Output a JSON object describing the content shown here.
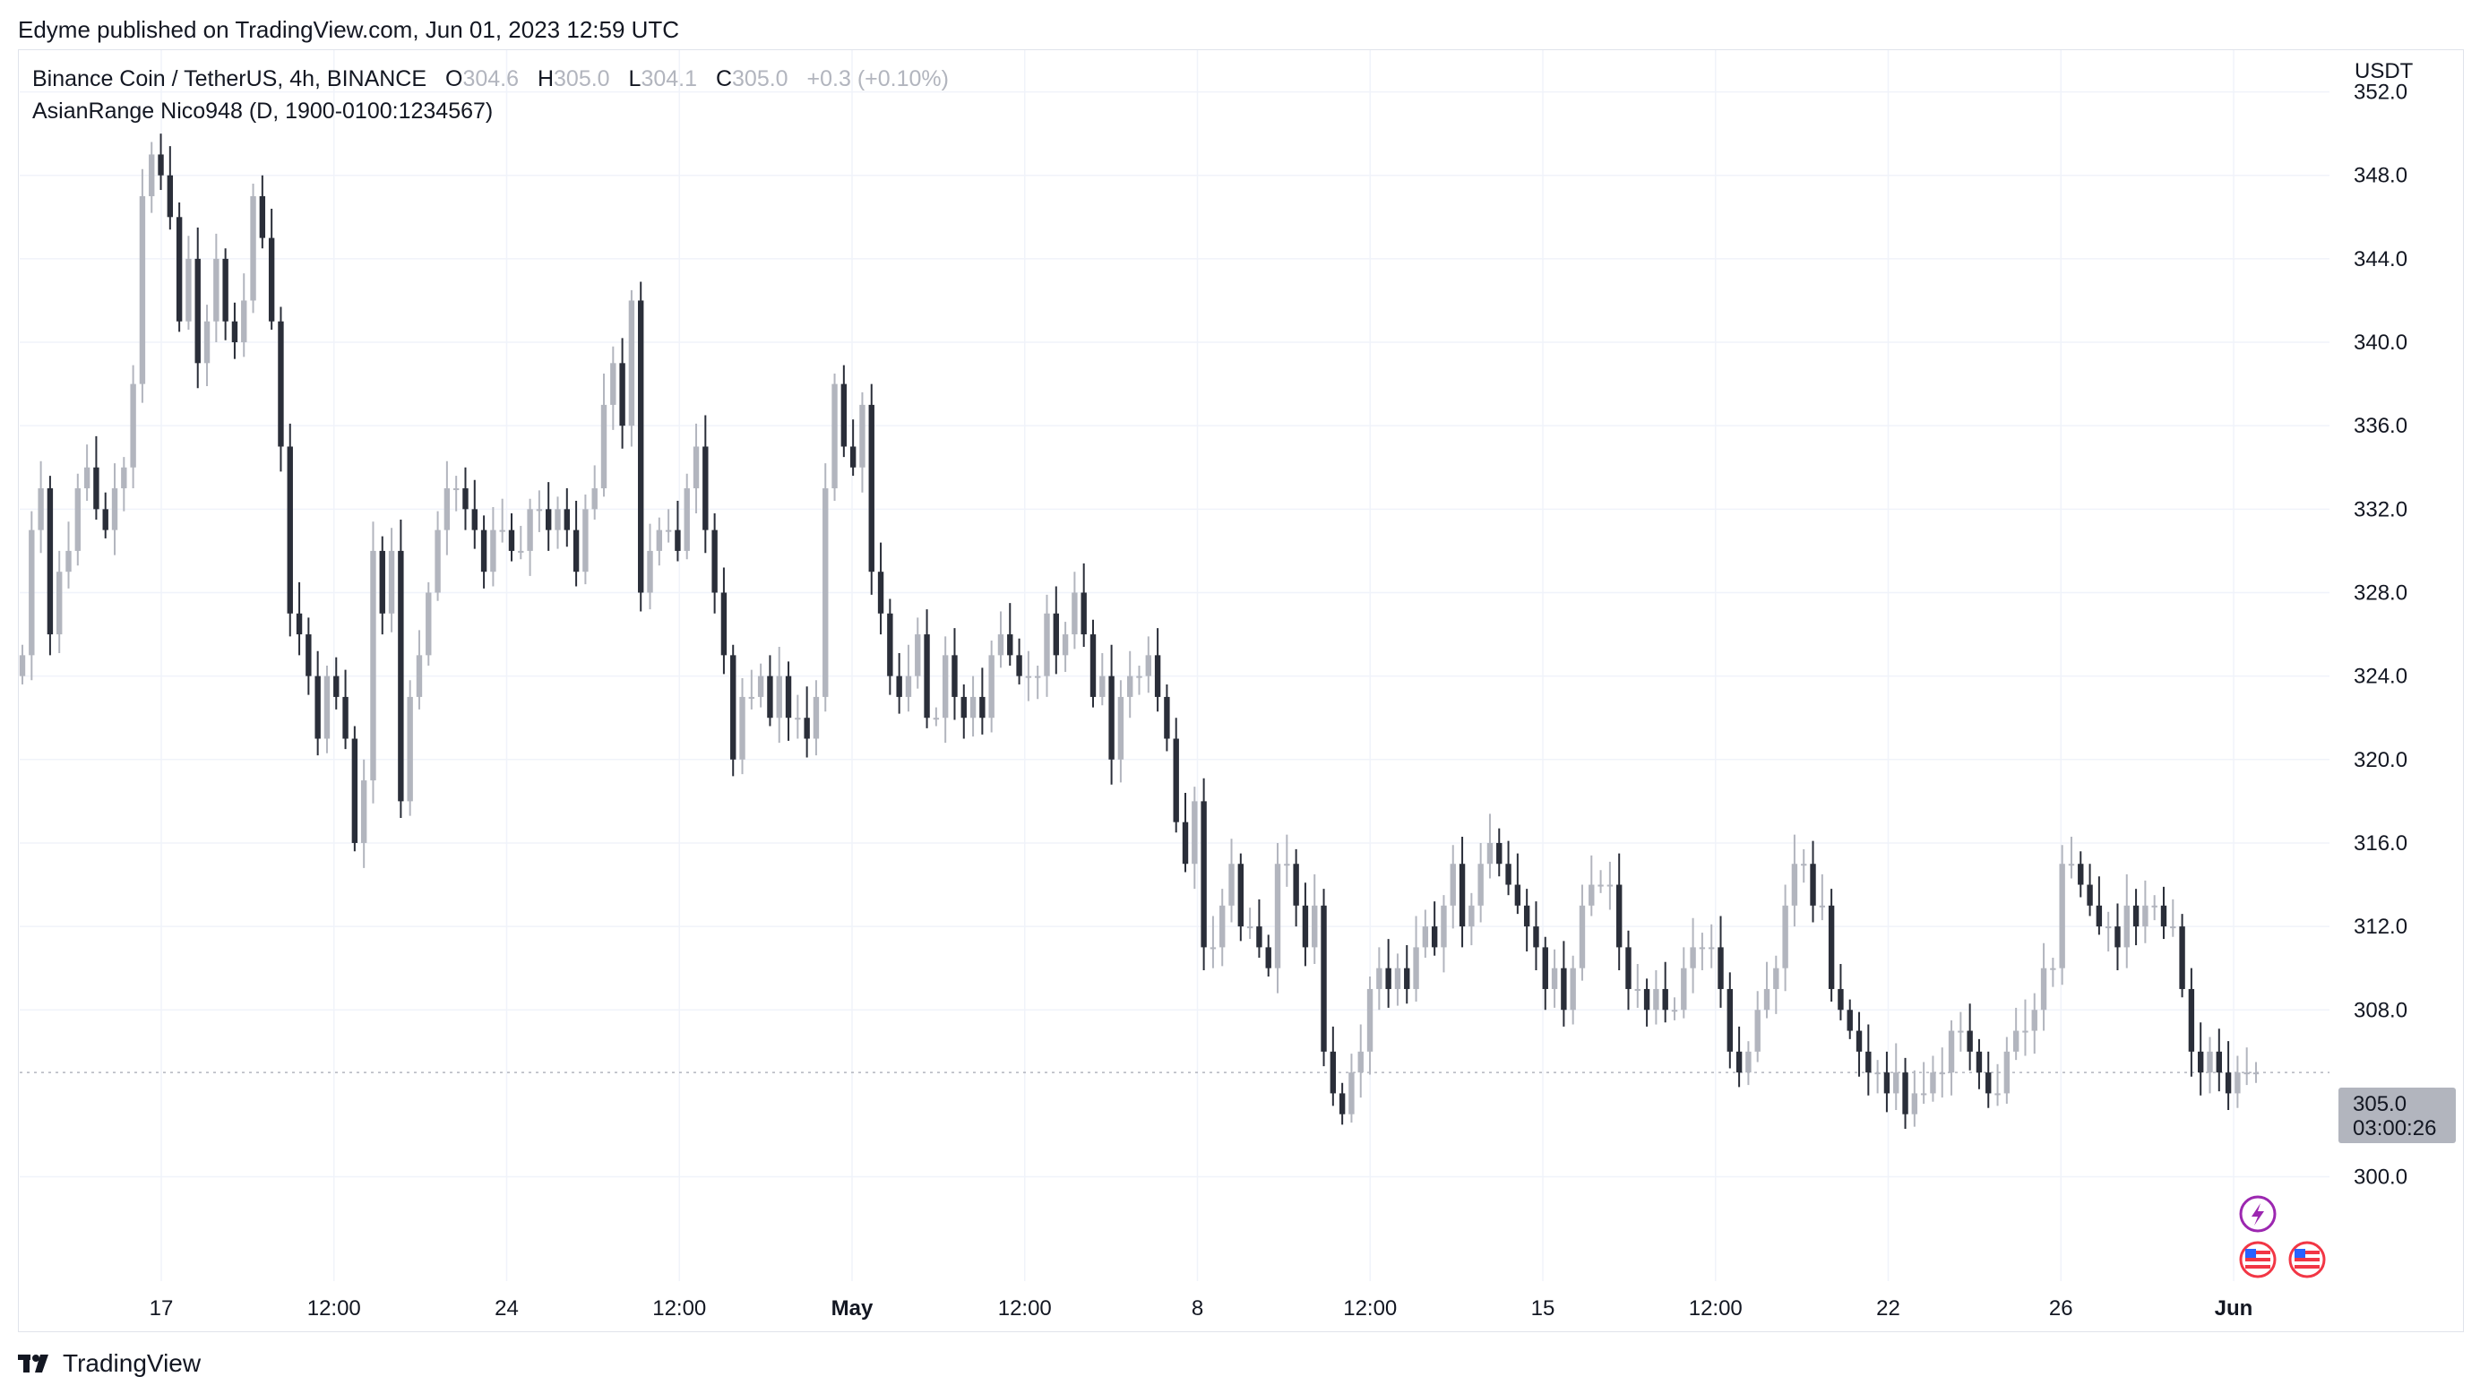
{
  "header": {
    "published": "Edyme published on TradingView.com, Jun 01, 2023 12:59 UTC"
  },
  "legend": {
    "symbol": "Binance Coin / TetherUS, 4h, BINANCE",
    "o_label": "O",
    "o_value": "304.6",
    "h_label": "H",
    "h_value": "305.0",
    "l_label": "L",
    "l_value": "304.1",
    "c_label": "C",
    "c_value": "305.0",
    "change": "+0.3 (+0.10%)",
    "indicator": "AsianRange Nico948 (D, 1900-0100:1234567)"
  },
  "price_badge": {
    "price": "305.0",
    "countdown": "03:00:26"
  },
  "footer": {
    "brand": "TradingView"
  },
  "colors": {
    "up": "#b2b5be",
    "down": "#2a2e39",
    "grid": "#f0f3fa",
    "badge": "#b2b5be",
    "event_lightning": "#9c27b0",
    "event_flag": "#f23645"
  },
  "chart_data": {
    "type": "candlestick",
    "title": "Binance Coin / TetherUS, 4h, BINANCE",
    "currency": "USDT",
    "ylim": [
      295.0,
      354.0
    ],
    "y_ticks": [
      "300.0",
      "308.0",
      "312.0",
      "316.0",
      "320.0",
      "324.0",
      "328.0",
      "332.0",
      "336.0",
      "340.0",
      "344.0",
      "348.0",
      "352.0"
    ],
    "x_ticks": [
      {
        "label": "17",
        "bold": false
      },
      {
        "label": "12:00",
        "bold": false
      },
      {
        "label": "24",
        "bold": false
      },
      {
        "label": "12:00",
        "bold": false
      },
      {
        "label": "May",
        "bold": true
      },
      {
        "label": "12:00",
        "bold": false
      },
      {
        "label": "8",
        "bold": false
      },
      {
        "label": "12:00",
        "bold": false
      },
      {
        "label": "15",
        "bold": false
      },
      {
        "label": "12:00",
        "bold": false
      },
      {
        "label": "22",
        "bold": false
      },
      {
        "label": "26",
        "bold": false
      },
      {
        "label": "Jun",
        "bold": true
      }
    ],
    "last_price": 305.0,
    "closes": [
      325,
      331,
      333,
      326,
      329,
      330,
      333,
      334,
      332,
      331,
      333,
      334,
      338,
      347,
      349,
      348,
      346,
      341,
      344,
      339,
      341,
      344,
      341,
      340,
      342,
      347,
      345,
      341,
      335,
      327,
      326,
      324,
      321,
      324,
      323,
      321,
      316,
      319,
      330,
      327,
      330,
      318,
      323,
      325,
      328,
      331,
      333,
      333,
      332,
      331,
      329,
      331,
      331,
      330,
      330,
      332,
      332,
      331,
      332,
      331,
      329,
      332,
      333,
      337,
      339,
      336,
      342,
      328,
      330,
      331,
      331,
      330,
      333,
      335,
      331,
      328,
      325,
      320,
      323,
      323,
      324,
      322,
      324,
      322,
      322,
      321,
      323,
      333,
      338,
      335,
      334,
      337,
      329,
      327,
      324,
      323,
      324,
      326,
      322,
      322,
      325,
      323,
      322,
      323,
      322,
      325,
      326,
      325,
      324,
      324,
      324,
      327,
      325,
      326,
      328,
      326,
      323,
      324,
      320,
      323,
      324,
      324,
      325,
      323,
      321,
      317,
      315,
      318,
      311,
      311,
      313,
      315,
      312,
      312,
      311,
      310,
      315,
      315,
      313,
      311,
      313,
      306,
      304,
      303,
      305,
      306,
      309,
      310,
      309,
      310,
      309,
      311,
      312,
      311,
      313,
      315,
      312,
      313,
      315,
      316,
      315,
      314,
      313,
      312,
      311,
      309,
      310,
      308,
      310,
      313,
      314,
      314,
      314,
      311,
      309,
      309,
      308,
      309,
      308,
      308,
      310,
      311,
      311,
      311,
      309,
      306,
      305,
      306,
      308,
      309,
      310,
      313,
      315,
      315,
      313,
      313,
      309,
      308,
      307,
      306,
      305,
      305,
      304,
      305,
      303,
      304,
      304,
      305,
      305,
      307,
      307,
      306,
      305,
      304,
      304,
      306,
      307,
      307,
      308,
      310,
      310,
      315,
      315,
      314,
      313,
      312,
      312,
      311,
      313,
      312,
      313,
      313,
      312,
      312,
      309,
      306,
      305,
      306,
      305,
      304,
      305,
      305,
      305
    ]
  }
}
